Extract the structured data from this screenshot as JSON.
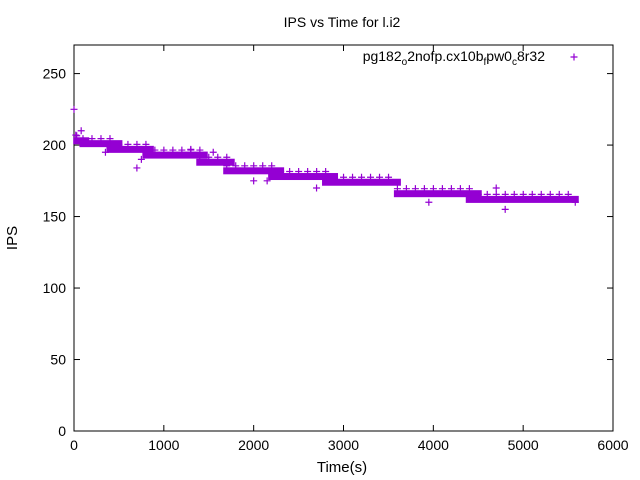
{
  "chart_data": {
    "type": "scatter",
    "title": "IPS vs Time for l.i2",
    "xlabel": "Time(s)",
    "ylabel": "IPS",
    "xlim": [
      0,
      6000
    ],
    "ylim": [
      0,
      270
    ],
    "xticks": [
      "0",
      "1000",
      "2000",
      "3000",
      "4000",
      "5000",
      "6000"
    ],
    "yticks": [
      "0",
      "50",
      "100",
      "150",
      "200",
      "250"
    ],
    "grid": false,
    "legend_position": "top-right",
    "marker": "+",
    "color": "#9400d3",
    "series": [
      {
        "legend_parts": [
          {
            "text": "pg182",
            "sub": false
          },
          {
            "text": "o",
            "sub": true
          },
          {
            "text": "2nofp.cx10b",
            "sub": false
          },
          {
            "text": "f",
            "sub": true
          },
          {
            "text": "pw0",
            "sub": false
          },
          {
            "text": "c",
            "sub": true
          },
          {
            "text": "8r32",
            "sub": false
          }
        ],
        "segments": [
          {
            "x0": 30,
            "x1": 130,
            "y": 203
          },
          {
            "x0": 100,
            "x1": 500,
            "y": 201
          },
          {
            "x0": 400,
            "x1": 850,
            "y": 197
          },
          {
            "x0": 800,
            "x1": 1450,
            "y": 193
          },
          {
            "x0": 1400,
            "x1": 1750,
            "y": 188
          },
          {
            "x0": 1700,
            "x1": 2300,
            "y": 182
          },
          {
            "x0": 2200,
            "x1": 2900,
            "y": 178
          },
          {
            "x0": 2800,
            "x1": 3600,
            "y": 174
          },
          {
            "x0": 3600,
            "x1": 4500,
            "y": 166
          },
          {
            "x0": 4400,
            "x1": 5580,
            "y": 162
          }
        ],
        "points": [
          {
            "x": 0,
            "y": 225
          },
          {
            "x": 20,
            "y": 207
          },
          {
            "x": 80,
            "y": 210
          },
          {
            "x": 350,
            "y": 195
          },
          {
            "x": 700,
            "y": 184
          },
          {
            "x": 750,
            "y": 190
          },
          {
            "x": 1300,
            "y": 197
          },
          {
            "x": 1550,
            "y": 195
          },
          {
            "x": 2000,
            "y": 175
          },
          {
            "x": 2150,
            "y": 175
          },
          {
            "x": 2700,
            "y": 170
          },
          {
            "x": 3950,
            "y": 160
          },
          {
            "x": 4700,
            "y": 170
          },
          {
            "x": 4800,
            "y": 155
          },
          {
            "x": 5580,
            "y": 160
          }
        ]
      }
    ]
  }
}
